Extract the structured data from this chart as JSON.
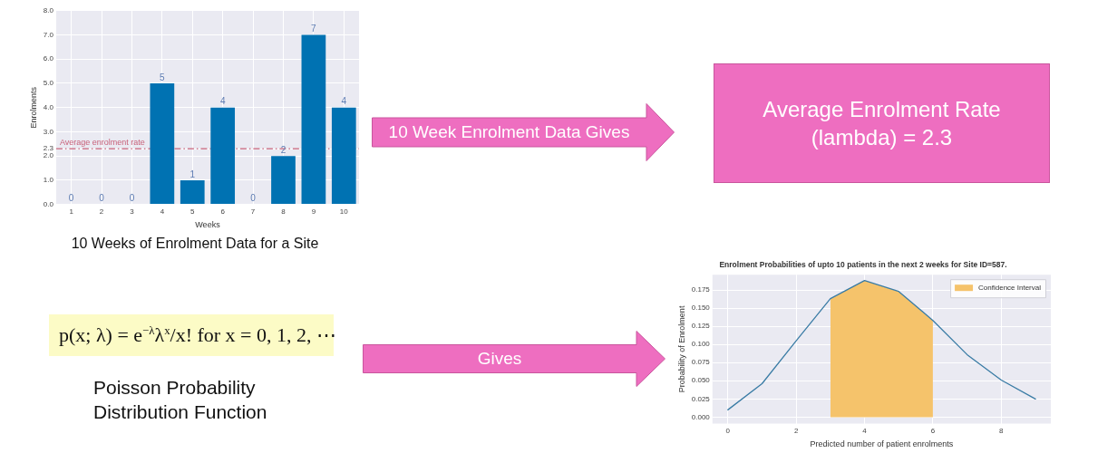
{
  "chart_data": [
    {
      "type": "bar",
      "xlabel": "Weeks",
      "ylabel": "Enrolments",
      "categories": [
        "1",
        "2",
        "3",
        "4",
        "5",
        "6",
        "7",
        "8",
        "9",
        "10"
      ],
      "values": [
        0,
        0,
        0,
        5,
        1,
        4,
        0,
        2,
        7,
        4
      ],
      "color": "#0072b2",
      "data_labels": true,
      "ylim": [
        0,
        8
      ],
      "yticks": [
        {
          "value": 0,
          "label": "0.0"
        },
        {
          "value": 1,
          "label": "1.0"
        },
        {
          "value": 2,
          "label": "2.0"
        },
        2.3,
        {
          "value": 3,
          "label": "3.0"
        },
        {
          "value": 4,
          "label": "4.0"
        },
        {
          "value": 5,
          "label": "5.0"
        },
        {
          "value": 6,
          "label": "6.0"
        },
        {
          "value": 7,
          "label": "7.0"
        },
        {
          "value": 8,
          "label": "8.0"
        }
      ],
      "grid": true,
      "ref_lines": [
        {
          "axis": "y",
          "value": 2.3,
          "label": "Average enrolment rate",
          "color": "#c8627a",
          "line_style": "dashed"
        }
      ],
      "annotations": [
        "10 Weeks of Enrolment Data for a Site",
        "10 Week Enrolment Data Gives",
        "Average Enrolment Rate (lambda) = 2.3"
      ]
    },
    {
      "type": "line",
      "title": "Enrolment Probabilities of upto 10 patients in the next 2 weeks for Site ID=587.",
      "xlabel": "Predicted number of patient enrolments",
      "ylabel": "Probability of Enrolment",
      "series": [
        {
          "type": "area",
          "name": "Confidence Interval",
          "color": "#f5c36b",
          "x": [
            3,
            4,
            5,
            6
          ],
          "values": [
            0.163,
            0.188,
            0.173,
            0.133
          ]
        },
        {
          "type": "line",
          "color": "#3a7ca5",
          "x": [
            0,
            1,
            2,
            3,
            4,
            5,
            6,
            7,
            8,
            9
          ],
          "values": [
            0.01,
            0.046,
            0.105,
            0.163,
            0.188,
            0.173,
            0.133,
            0.086,
            0.051,
            0.025
          ]
        }
      ],
      "xlim": [
        -0.45,
        9.45
      ],
      "xticks": [
        0,
        2,
        4,
        6,
        8
      ],
      "ylim": [
        -0.009,
        0.196
      ],
      "yticks": [
        {
          "value": 0,
          "label": "0.000"
        },
        {
          "value": 0.025,
          "label": "0.025"
        },
        {
          "value": 0.05,
          "label": "0.050"
        },
        {
          "value": 0.075,
          "label": "0.075"
        },
        {
          "value": 0.1,
          "label": "0.100"
        },
        {
          "value": 0.125,
          "label": "0.125"
        },
        {
          "value": 0.15,
          "label": "0.150"
        },
        {
          "value": 0.175,
          "label": "0.175"
        }
      ],
      "grid": true,
      "legend": "top right",
      "annotations": [
        "p(x; λ) = e$^{−λ}$λ$^{x}$/x! for x = 0, 1, 2, ⋯",
        "Poisson Probability Distribution Function",
        "Gives"
      ]
    }
  ]
}
